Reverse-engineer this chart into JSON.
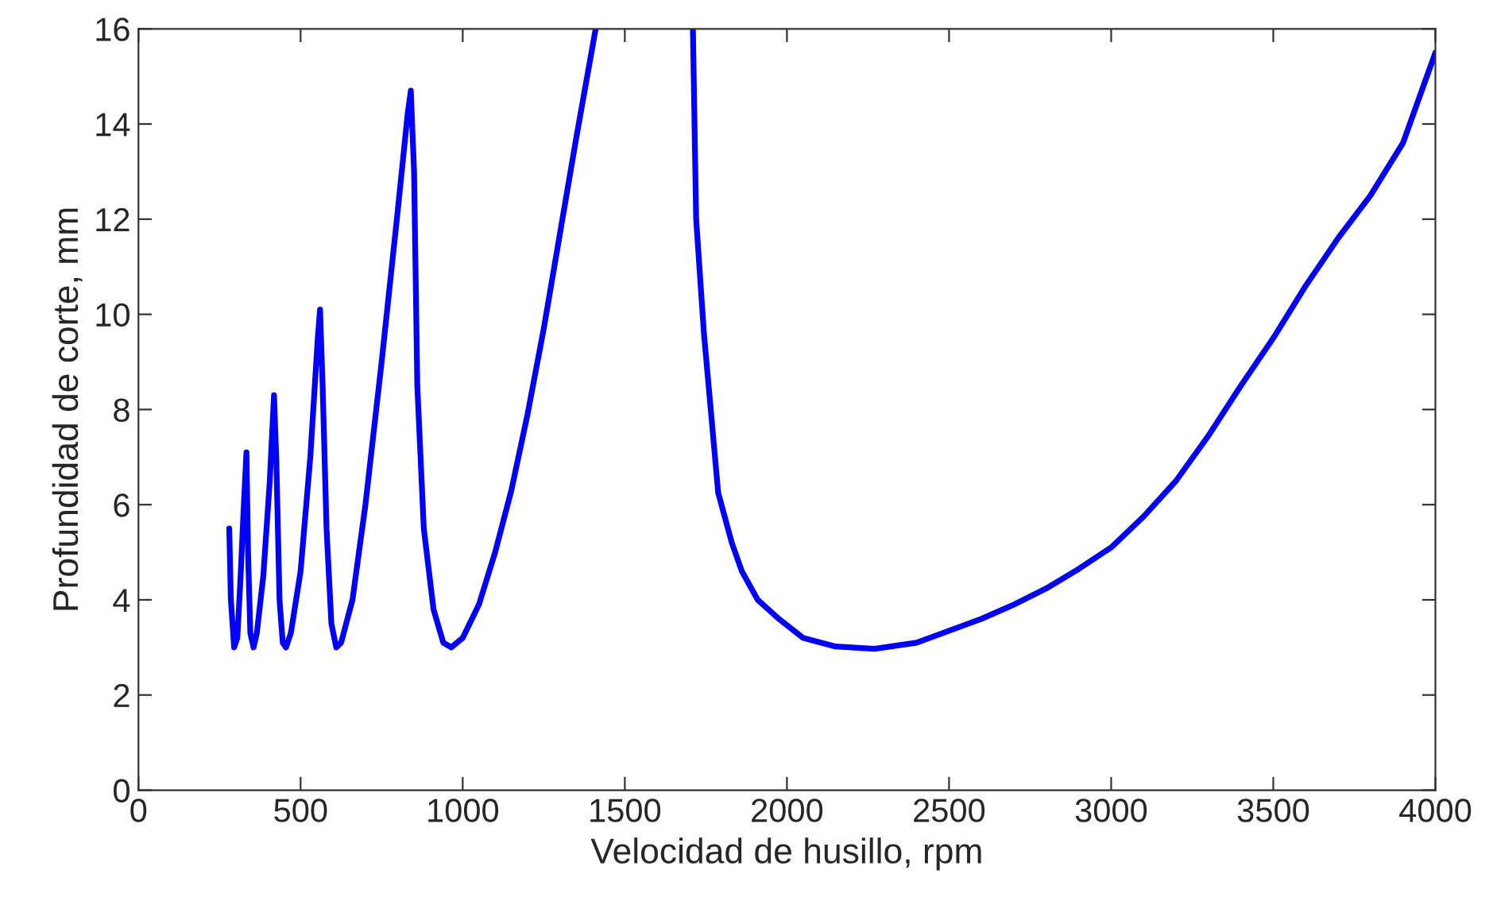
{
  "chart_data": {
    "type": "line",
    "xlabel": "Velocidad de husillo, rpm",
    "ylabel": "Profundidad de corte, mm",
    "xlim": [
      0,
      4000
    ],
    "xticks": [
      0,
      500,
      1000,
      1500,
      2000,
      2500,
      3000,
      3500,
      4000
    ],
    "ylim": [
      0,
      16
    ],
    "yticks": [
      0,
      2,
      4,
      6,
      8,
      10,
      12,
      14,
      16
    ],
    "grid": false,
    "marker": "none",
    "line_style": "solid",
    "series": [
      {
        "color": "#0000ff",
        "x": [
          280,
          285,
          295,
          305,
          315,
          325,
          333,
          338,
          345,
          355,
          365,
          385,
          405,
          418,
          425,
          435,
          445,
          455,
          470,
          500,
          530,
          553,
          560,
          568,
          580,
          595,
          610,
          625,
          660,
          700,
          750,
          800,
          830,
          840,
          850,
          860,
          880,
          910,
          940,
          965,
          1000,
          1050,
          1100,
          1150,
          1200,
          1250,
          1300,
          1350,
          1410,
          1560,
          1710,
          1720,
          1744,
          1788,
          1830,
          1861,
          1910,
          1975,
          2050,
          2150,
          2270,
          2400,
          2500,
          2600,
          2700,
          2800,
          2900,
          3000,
          3100,
          3200,
          3300,
          3400,
          3500,
          3600,
          3700,
          3800,
          3900,
          4000
        ],
        "values": [
          5.5,
          4.0,
          3.0,
          3.2,
          4.5,
          6.0,
          7.1,
          5.0,
          3.3,
          3.0,
          3.3,
          4.5,
          6.5,
          8.3,
          7.0,
          4.0,
          3.1,
          3.0,
          3.3,
          4.6,
          7.0,
          9.5,
          10.1,
          8.5,
          5.5,
          3.5,
          3.0,
          3.1,
          4.0,
          6.0,
          9.0,
          12.2,
          14.2,
          14.7,
          13.0,
          8.5,
          5.5,
          3.8,
          3.1,
          3.0,
          3.2,
          3.9,
          5.0,
          6.3,
          7.9,
          9.7,
          11.7,
          13.7,
          16.0,
          null,
          16.0,
          12.0,
          9.6,
          6.25,
          5.2,
          4.6,
          4.0,
          3.6,
          3.2,
          3.02,
          2.97,
          3.1,
          3.35,
          3.6,
          3.9,
          4.24,
          4.65,
          5.1,
          5.75,
          6.5,
          7.45,
          8.5,
          9.5,
          10.6,
          11.6,
          12.5,
          13.6,
          15.5
        ]
      }
    ]
  }
}
